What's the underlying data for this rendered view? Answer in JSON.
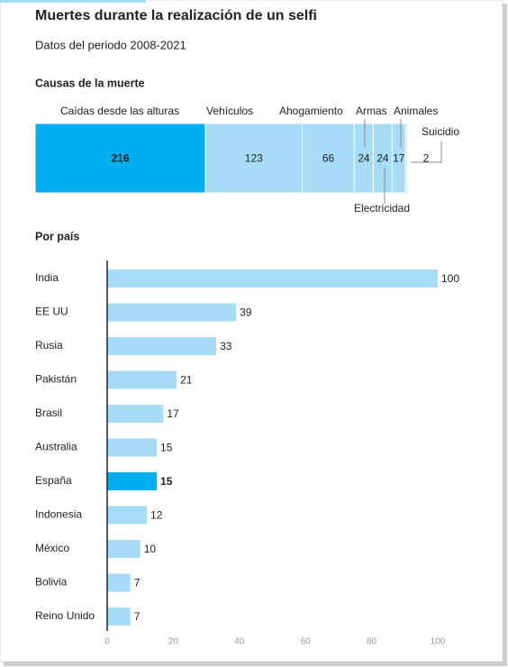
{
  "title": "Muertes durante la realización de un selfi",
  "subtitle": "Datos del periodo 2008-2021",
  "chart_data": [
    {
      "type": "stacked_bar",
      "title": "Causas de la muerte",
      "series": [
        {
          "name": "Caídas desde las alturas",
          "color": "#00aeef",
          "values": [
            216
          ]
        },
        {
          "name": "Vehículos",
          "color": "#a6dcf5",
          "values": [
            123
          ]
        },
        {
          "name": "Ahogamiento",
          "color": "#a6dcf5",
          "values": [
            66
          ]
        },
        {
          "name": "Armas",
          "color": "#a6dcf5",
          "values": [
            24
          ]
        },
        {
          "name": "Electricidad",
          "color": "#a6dcf5",
          "values": [
            24
          ]
        },
        {
          "name": "Animales",
          "color": "#a6dcf5",
          "values": [
            17
          ]
        },
        {
          "name": "Suicidio",
          "color": "#a6dcf5",
          "values": [
            2
          ]
        }
      ]
    },
    {
      "type": "hbar",
      "title": "Por país",
      "categories": [
        "India",
        "EE UU",
        "Rusia",
        "Pakistán",
        "Brasil",
        "Australia",
        "España",
        "Indonesia",
        "México",
        "Bolivia",
        "Reino Unido"
      ],
      "values": [
        100,
        39,
        33,
        21,
        17,
        15,
        15,
        12,
        10,
        7,
        7
      ],
      "color": "#a6dcf5",
      "colors": [
        "#a6dcf5",
        "#a6dcf5",
        "#a6dcf5",
        "#a6dcf5",
        "#a6dcf5",
        "#a6dcf5",
        "#00aeef",
        "#a6dcf5",
        "#a6dcf5",
        "#a6dcf5",
        "#a6dcf5"
      ],
      "xlim": [
        0,
        100
      ],
      "xticks": [
        0,
        20,
        40,
        60,
        80,
        100
      ]
    }
  ]
}
